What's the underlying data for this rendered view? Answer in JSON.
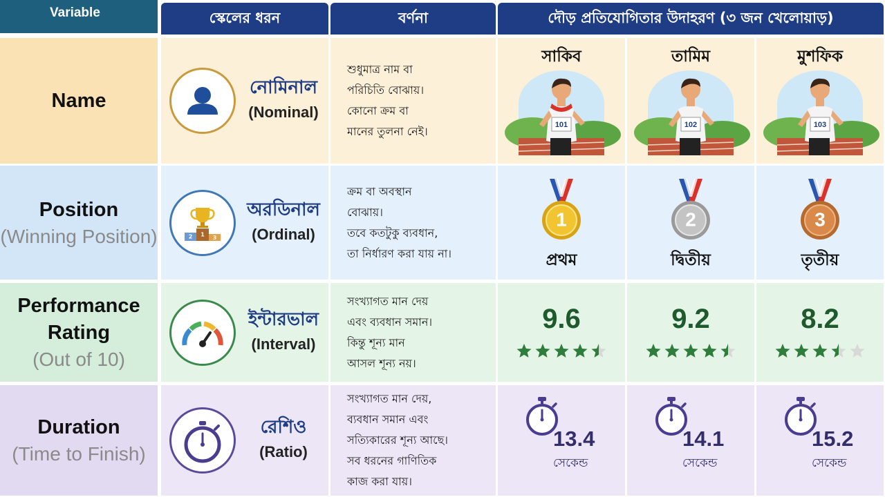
{
  "header": {
    "variable": "Variable",
    "columns": [
      "স্কেলের ধরন",
      "বর্ণনা",
      "দৌড় প্রতিযোগিতার উদাহরণ (৩ জন খেলোয়াড়)"
    ]
  },
  "rows": [
    {
      "variable": "Name",
      "scale": {
        "name": "নোমিনাল",
        "english": "(Nominal)"
      },
      "description": [
        "শুধুমাত্র নাম বা",
        "পরিচিতি বোঝায়।",
        "কোনো ক্রম বা",
        "মানের তুলনা নেই।"
      ],
      "examples": [
        {
          "name": "সাকিব",
          "bib": "101"
        },
        {
          "name": "তামিম",
          "bib": "102"
        },
        {
          "name": "মুশফিক",
          "bib": "103"
        }
      ]
    },
    {
      "variable": "Position",
      "note": "(Winning Position)",
      "scale": {
        "name": "অরডিনাল",
        "english": "(Ordinal)",
        "podium": [
          "2",
          "1",
          "3"
        ]
      },
      "description": [
        "ক্রম বা অবস্থান",
        "বোঝায়।",
        "তবে কতটুকু ব্যবধান,",
        "তা নির্ধারণ করা যায় না।"
      ],
      "examples": [
        {
          "medal": "1",
          "label": "প্রথম"
        },
        {
          "medal": "2",
          "label": "দ্বিতীয়"
        },
        {
          "medal": "3",
          "label": "তৃতীয়"
        }
      ]
    },
    {
      "variable": "Performance Rating",
      "note": "(Out of 10)",
      "scale": {
        "name": "ইন্টারভাল",
        "english": "(Interval)"
      },
      "description": [
        "সংখ্যাগত মান দেয়",
        "এবং ব্যবধান সমান।",
        "কিন্তু শূন্য মান",
        "আসল শূন্য নয়।"
      ],
      "examples": [
        {
          "rating": 9.6,
          "stars": 4.5
        },
        {
          "rating": 9.2,
          "stars": 4.5
        },
        {
          "rating": 8.2,
          "stars": 3.5
        }
      ]
    },
    {
      "variable": "Duration",
      "note": "(Time to Finish)",
      "scale": {
        "name": "রেশিও",
        "english": "(Ratio)"
      },
      "description": [
        "সংখ্যাগত মান দেয়,",
        "ব্যবধান সমান এবং",
        "সত্যিকারের শূন্য আছে।",
        "সব ধরনের গাণিতিক",
        "কাজ করা যায়।"
      ],
      "examples": [
        {
          "time": 13.4,
          "unit": "সেকেন্ড"
        },
        {
          "time": 14.1,
          "unit": "সেকেন্ড"
        },
        {
          "time": 15.2,
          "unit": "সেকেন্ড"
        }
      ]
    }
  ]
}
